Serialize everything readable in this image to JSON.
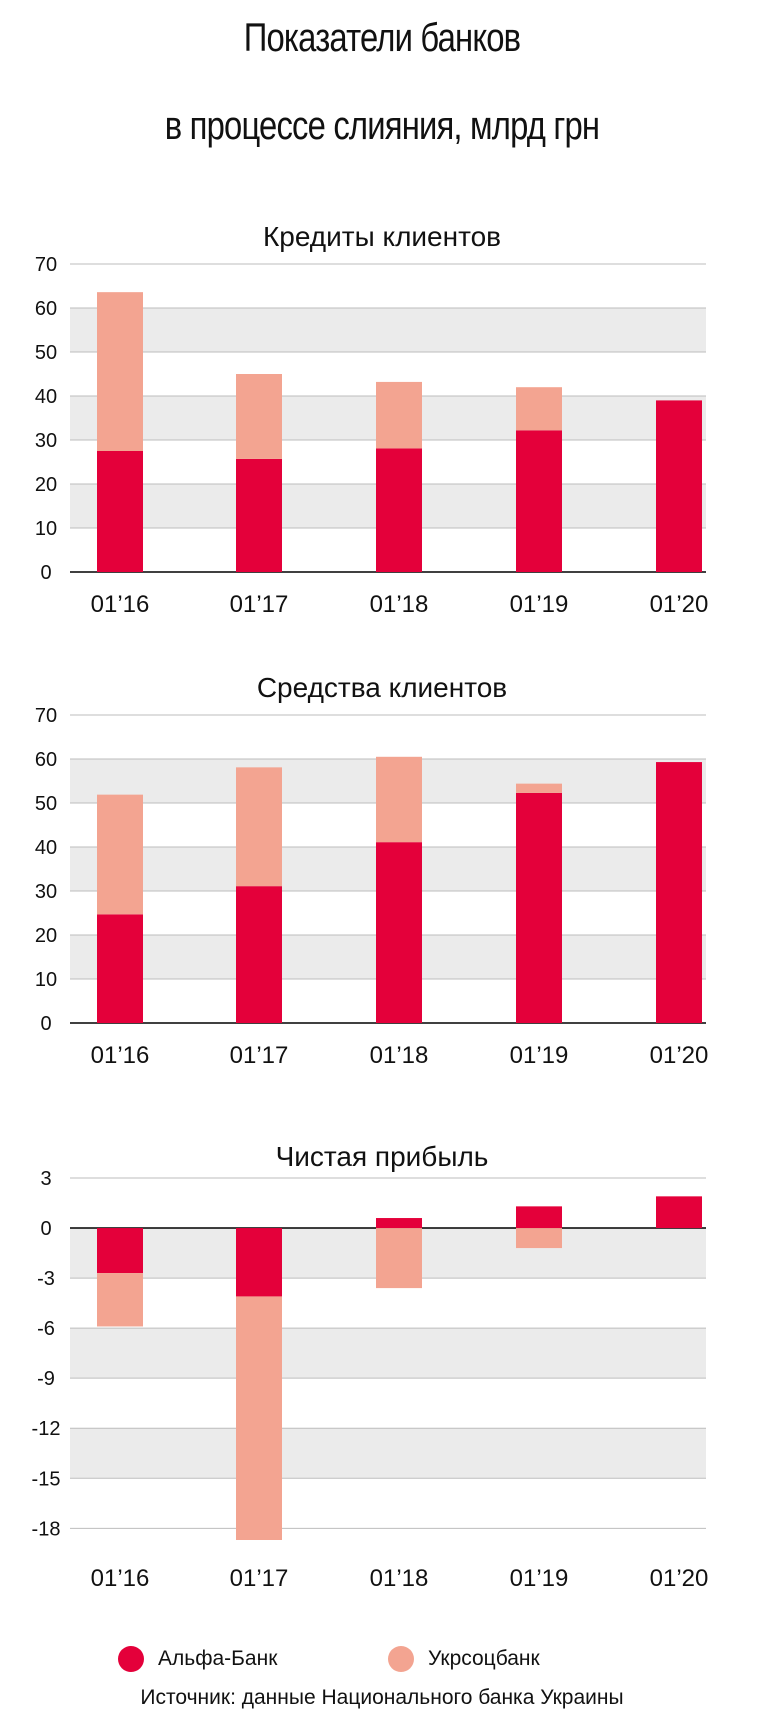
{
  "title_line1": "Показатели банков",
  "title_line2": "в процессе слияния, млрд грн",
  "colors": {
    "alfa": "#e4003a",
    "ukrsots": "#f3a491",
    "band": "#ebebeb",
    "grid": "#bdbdbd",
    "axis": "#000000"
  },
  "legend": [
    {
      "name": "Альфа-Банк",
      "color": "#e4003a"
    },
    {
      "name": "Укрсоцбанк",
      "color": "#f3a491"
    }
  ],
  "source": "Источник: данные Национального банка Украины",
  "chart_data": [
    {
      "type": "bar",
      "stacked": true,
      "title": "Кредиты клиентов",
      "categories": [
        "01’16",
        "01’17",
        "01’18",
        "01’19",
        "01’20"
      ],
      "series": [
        {
          "name": "Альфа-Банк",
          "values": [
            27.5,
            25.7,
            28.1,
            32.2,
            39.0
          ]
        },
        {
          "name": "Укрсоцбанк",
          "values": [
            36.1,
            19.3,
            15.1,
            9.8,
            0
          ]
        }
      ],
      "yticks": [
        "70",
        "60",
        "50",
        "40",
        "30",
        "20",
        "10",
        "0"
      ],
      "ylim": [
        0,
        70
      ]
    },
    {
      "type": "bar",
      "stacked": true,
      "title": "Средства клиентов",
      "categories": [
        "01’16",
        "01’17",
        "01’18",
        "01’19",
        "01’20"
      ],
      "series": [
        {
          "name": "Альфа-Банк",
          "values": [
            24.7,
            31.1,
            41.1,
            52.3,
            59.3
          ]
        },
        {
          "name": "Укрсоцбанк",
          "values": [
            27.2,
            27.0,
            19.4,
            2.1,
            0
          ]
        }
      ],
      "yticks": [
        "70",
        "60",
        "50",
        "40",
        "30",
        "20",
        "10",
        "0"
      ],
      "ylim": [
        0,
        70
      ]
    },
    {
      "type": "bar",
      "stacked": true,
      "title": "Чистая прибыль",
      "categories": [
        "01’16",
        "01’17",
        "01’18",
        "01’19",
        "01’20"
      ],
      "series": [
        {
          "name": "Альфа-Банк",
          "values": [
            -2.7,
            -4.1,
            0.6,
            1.3,
            1.9
          ]
        },
        {
          "name": "Укрсоцбанк",
          "values": [
            -3.2,
            -14.6,
            -3.6,
            -1.2,
            0
          ]
        }
      ],
      "yticks": [
        "3",
        "0",
        "-3",
        "-6",
        "-9",
        "-12",
        "-15",
        "-18"
      ],
      "ylim": [
        -19,
        3
      ]
    }
  ]
}
